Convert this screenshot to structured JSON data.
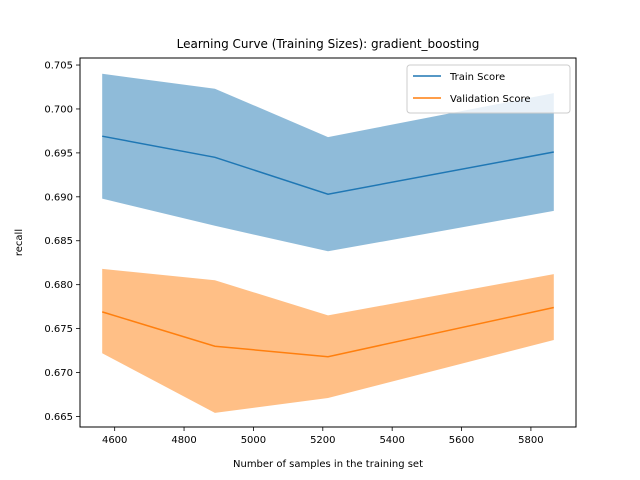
{
  "chart_data": {
    "type": "line",
    "title": "Learning Curve (Training Sizes): gradient_boosting",
    "xlabel": "Number of samples in the training set",
    "ylabel": "recall",
    "xlim": [
      4500,
      5930
    ],
    "ylim": [
      0.6638,
      0.7058
    ],
    "x_ticks": [
      4600,
      4800,
      5000,
      5200,
      5400,
      5600,
      5800
    ],
    "x_tick_labels": [
      "4600",
      "4800",
      "5000",
      "5200",
      "5400",
      "5600",
      "5800"
    ],
    "y_ticks": [
      0.665,
      0.67,
      0.675,
      0.68,
      0.685,
      0.69,
      0.695,
      0.7,
      0.705
    ],
    "y_tick_labels": [
      "0.665",
      "0.670",
      "0.675",
      "0.680",
      "0.685",
      "0.690",
      "0.695",
      "0.700",
      "0.705"
    ],
    "grid": false,
    "legend_position": "top-right",
    "x": [
      4564,
      4889,
      5215,
      5866
    ],
    "series": [
      {
        "name": "Train Score",
        "color": "#1f77b4",
        "band_color": "#1f77b4",
        "values": [
          0.6969,
          0.6945,
          0.6903,
          0.6951
        ],
        "lower": [
          0.6898,
          0.6867,
          0.6838,
          0.6884
        ],
        "upper": [
          0.704,
          0.7023,
          0.6968,
          0.7018
        ]
      },
      {
        "name": "Validation Score",
        "color": "#ff7f0e",
        "band_color": "#ff7f0e",
        "values": [
          0.6769,
          0.673,
          0.6718,
          0.6774
        ],
        "lower": [
          0.6722,
          0.6654,
          0.6671,
          0.6737
        ],
        "upper": [
          0.6818,
          0.6805,
          0.6765,
          0.6812
        ]
      }
    ]
  }
}
